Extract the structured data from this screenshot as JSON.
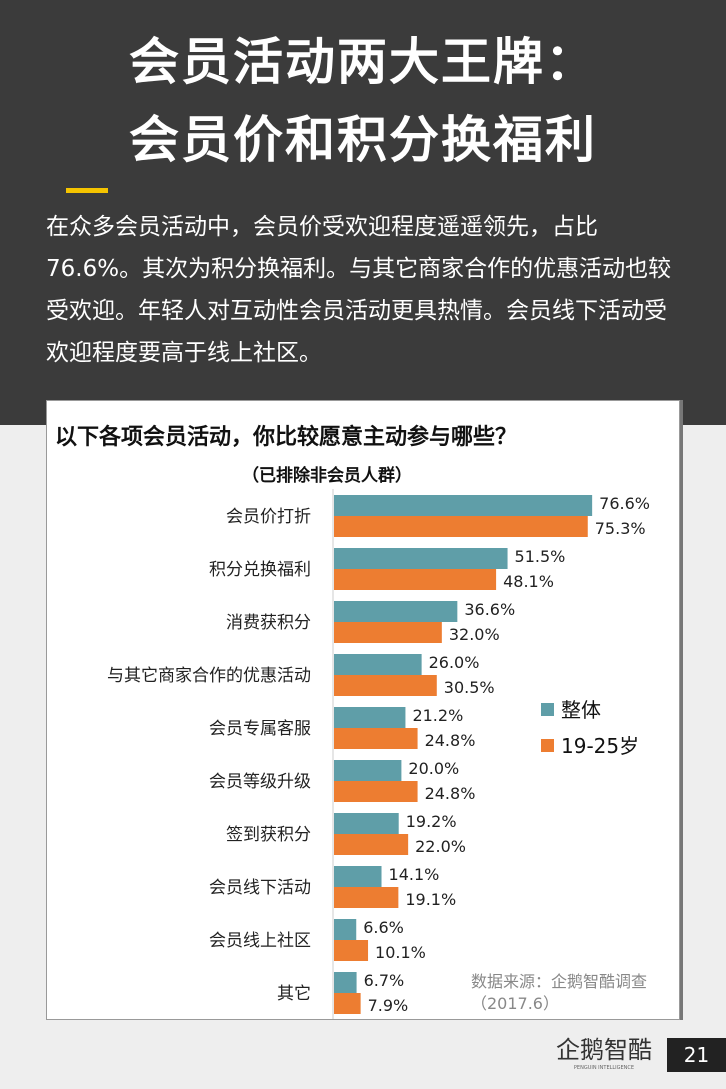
{
  "header": {
    "title_line1": "会员活动两大王牌：",
    "title_line2": "会员价和积分换福利",
    "intro": "在众多会员活动中，会员价受欢迎程度遥遥领先，占比76.6%。其次为积分换福利。与其它商家合作的优惠活动也较受欢迎。年轻人对互动性会员活动更具热情。会员线下活动受欢迎程度要高于线上社区。"
  },
  "chart_data": {
    "type": "bar",
    "orientation": "horizontal",
    "title": "以下各项会员活动，你比较愿意主动参与哪些？",
    "subtitle": "（已排除非会员人群）",
    "categories": [
      "会员价打折",
      "积分兑换福利",
      "消费获积分",
      "与其它商家合作的优惠活动",
      "会员专属客服",
      "会员等级升级",
      "签到获积分",
      "会员线下活动",
      "会员线上社区",
      "其它"
    ],
    "series": [
      {
        "name": "整体",
        "color": "#5f9ea8",
        "values": [
          76.6,
          51.5,
          36.6,
          26.0,
          21.2,
          20.0,
          19.2,
          14.1,
          6.6,
          6.7
        ]
      },
      {
        "name": "19-25岁",
        "color": "#ed7d31",
        "values": [
          75.3,
          48.1,
          32.0,
          30.5,
          24.8,
          24.8,
          22.0,
          19.1,
          10.1,
          7.9
        ]
      }
    ],
    "value_format": "%",
    "legend": "right",
    "grid": false
  },
  "source": {
    "line1": "数据来源：企鹅智酷调查",
    "line2": "（2017.6）"
  },
  "footer": {
    "logo_text": "企鹅智酷",
    "logo_sub": "PENGUIN INTELLIGENCE",
    "page": "21"
  }
}
